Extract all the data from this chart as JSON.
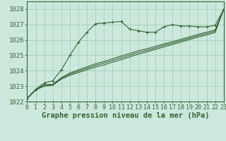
{
  "bg_color": "#cce8dd",
  "grid_color": "#99ccaa",
  "line_color": "#336633",
  "marker_color": "#336633",
  "xlabel": "Graphe pression niveau de la mer (hPa)",
  "xlabel_fontsize": 7.5,
  "ylabel_fontsize": 6.5,
  "tick_fontsize": 6.0,
  "xlim": [
    0,
    23
  ],
  "ylim": [
    1022,
    1028.5
  ],
  "yticks": [
    1022,
    1023,
    1024,
    1025,
    1026,
    1027,
    1028
  ],
  "xticks": [
    0,
    1,
    2,
    3,
    4,
    5,
    6,
    7,
    8,
    9,
    10,
    11,
    12,
    13,
    14,
    15,
    16,
    17,
    18,
    19,
    20,
    21,
    22,
    23
  ],
  "series1_x": [
    0,
    1,
    2,
    3,
    4,
    5,
    6,
    7,
    8,
    9,
    10,
    11,
    12,
    13,
    14,
    15,
    16,
    17,
    18,
    19,
    20,
    21,
    22,
    23
  ],
  "series1_y": [
    1022.2,
    1022.8,
    1023.2,
    1023.35,
    1024.05,
    1025.0,
    1025.85,
    1026.5,
    1027.05,
    1027.1,
    1027.15,
    1027.2,
    1026.7,
    1026.6,
    1026.5,
    1026.5,
    1026.85,
    1027.0,
    1026.9,
    1026.9,
    1026.85,
    1026.85,
    1026.95,
    1028.0
  ],
  "series2_x": [
    0,
    1,
    2,
    3,
    4,
    5,
    6,
    7,
    8,
    9,
    10,
    11,
    12,
    13,
    14,
    15,
    16,
    17,
    18,
    19,
    20,
    21,
    22,
    23
  ],
  "series2_y": [
    1022.2,
    1022.75,
    1023.05,
    1023.1,
    1023.55,
    1023.85,
    1024.05,
    1024.25,
    1024.45,
    1024.6,
    1024.78,
    1024.95,
    1025.12,
    1025.3,
    1025.42,
    1025.58,
    1025.74,
    1025.88,
    1026.04,
    1026.2,
    1026.36,
    1026.5,
    1026.65,
    1028.0
  ],
  "series3_x": [
    0,
    1,
    2,
    3,
    4,
    5,
    6,
    7,
    8,
    9,
    10,
    11,
    12,
    13,
    14,
    15,
    16,
    17,
    18,
    19,
    20,
    21,
    22,
    23
  ],
  "series3_y": [
    1022.2,
    1022.75,
    1023.0,
    1023.05,
    1023.45,
    1023.7,
    1023.88,
    1024.06,
    1024.24,
    1024.38,
    1024.56,
    1024.72,
    1024.9,
    1025.08,
    1025.22,
    1025.38,
    1025.55,
    1025.7,
    1025.86,
    1026.02,
    1026.18,
    1026.32,
    1026.48,
    1028.0
  ],
  "series4_x": [
    0,
    1,
    2,
    3,
    4,
    5,
    6,
    7,
    8,
    9,
    10,
    11,
    12,
    13,
    14,
    15,
    16,
    17,
    18,
    19,
    20,
    21,
    22,
    23
  ],
  "series4_y": [
    1022.2,
    1022.78,
    1023.08,
    1023.12,
    1023.52,
    1023.78,
    1023.97,
    1024.16,
    1024.35,
    1024.5,
    1024.67,
    1024.84,
    1025.01,
    1025.19,
    1025.32,
    1025.48,
    1025.65,
    1025.79,
    1025.95,
    1026.11,
    1026.27,
    1026.41,
    1026.57,
    1028.0
  ]
}
